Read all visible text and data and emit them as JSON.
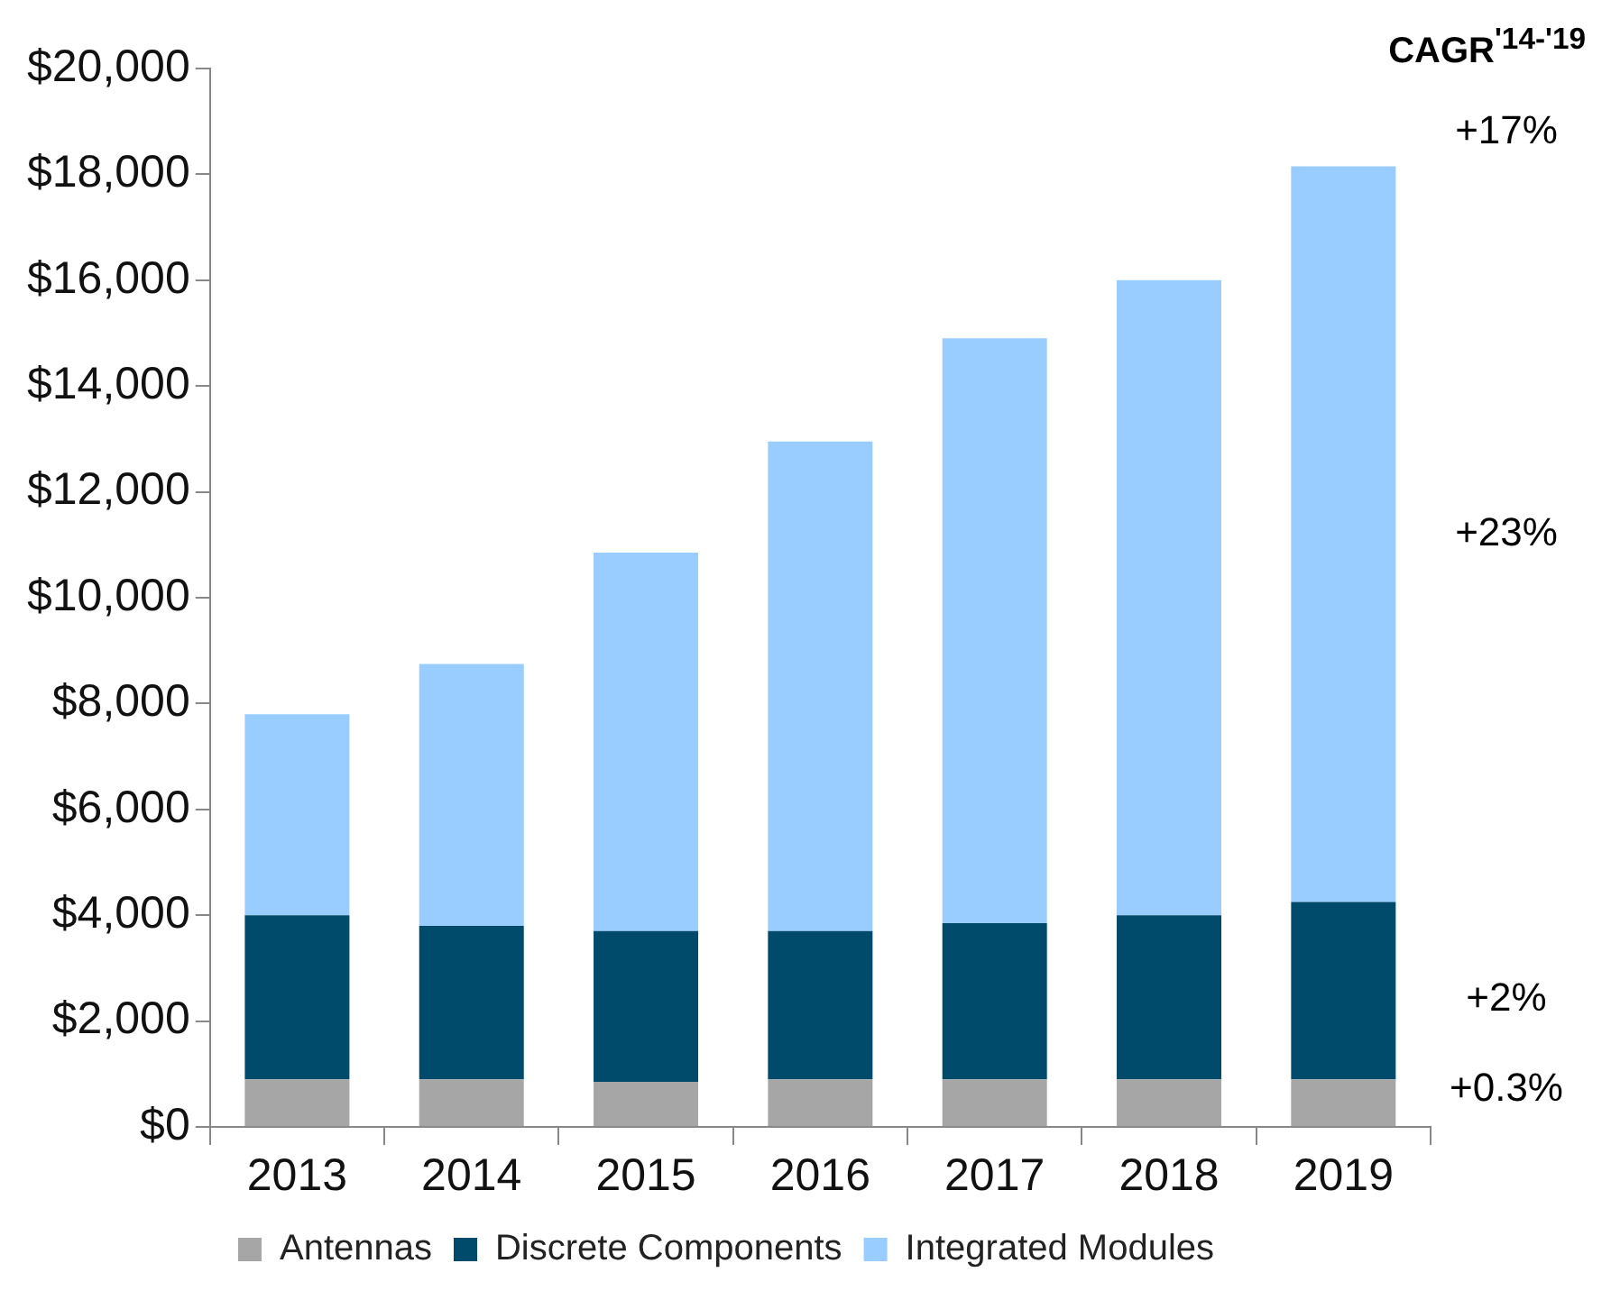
{
  "chart_data": {
    "type": "bar",
    "title": "CAGR$^{'14-'19}$",
    "stacked": true,
    "categories": [
      "2013",
      "2014",
      "2015",
      "2016",
      "2017",
      "2018",
      "2019"
    ],
    "series": [
      {
        "name": "Antennas",
        "color": "#a6a6a6",
        "values": [
          900,
          900,
          850,
          900,
          900,
          900,
          900
        ]
      },
      {
        "name": "Discrete Components",
        "color": "#004b6b",
        "values": [
          3100,
          2900,
          2850,
          2800,
          2950,
          3100,
          3350
        ]
      },
      {
        "name": "Integrated Modules",
        "color": "#99ccff",
        "values": [
          3800,
          4950,
          7150,
          9250,
          11050,
          12000,
          13900
        ]
      }
    ],
    "ylim": [
      0,
      20000
    ],
    "yticks": [
      {
        "value": 0,
        "label": "$0"
      },
      {
        "value": 2000,
        "label": "$2,000"
      },
      {
        "value": 4000,
        "label": "$4,000"
      },
      {
        "value": 6000,
        "label": "$6,000"
      },
      {
        "value": 8000,
        "label": "$8,000"
      },
      {
        "value": 10000,
        "label": "$10,000"
      },
      {
        "value": 12000,
        "label": "$12,000"
      },
      {
        "value": 14000,
        "label": "$14,000"
      },
      {
        "value": 16000,
        "label": "$16,000"
      },
      {
        "value": 18000,
        "label": "$18,000"
      },
      {
        "value": 20000,
        "label": "$20,000"
      }
    ],
    "grid": false,
    "legend": "bottom",
    "annotations": [
      "+17%",
      "+23%",
      "+2%",
      "+0.3%"
    ]
  }
}
